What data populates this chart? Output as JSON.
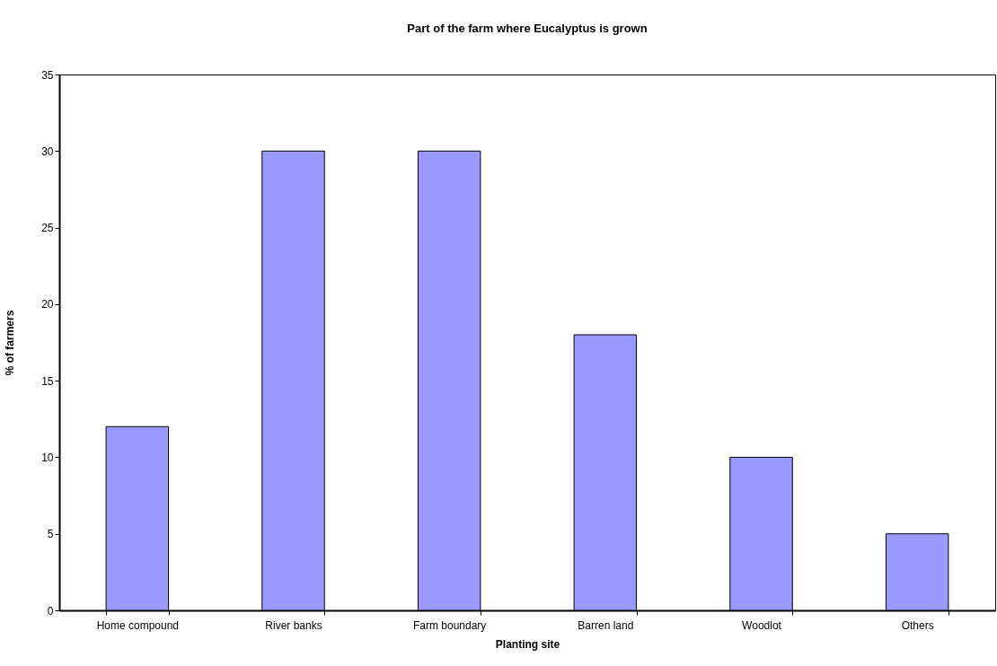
{
  "chart_data": {
    "type": "bar",
    "title": "Part of the farm where Eucalyptus is grown",
    "xlabel": "Planting site",
    "ylabel": "% of farmers",
    "categories": [
      "Home compound",
      "River banks",
      "Farm boundary",
      "Barren land",
      "Woodlot",
      "Others"
    ],
    "values": [
      12,
      30,
      30,
      18,
      10,
      5
    ],
    "color": "#9999ff",
    "ylim": [
      0,
      35
    ],
    "yticks": [
      0,
      5,
      10,
      15,
      20,
      25,
      30,
      35
    ],
    "grid": false
  }
}
